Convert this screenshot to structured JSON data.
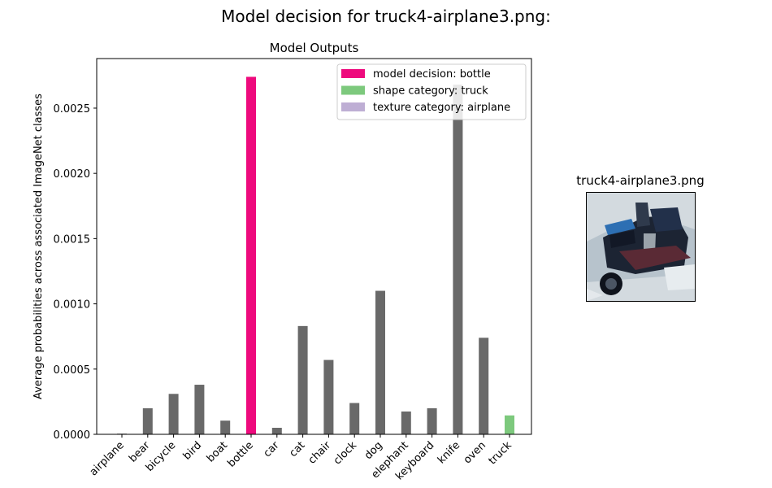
{
  "figure": {
    "title": "Model decision for truck4-airplane3.png:"
  },
  "chart_data": {
    "type": "bar",
    "title": "Model Outputs",
    "xlabel": "",
    "ylabel": "Average probabilities across associated ImageNet classes",
    "ylim": [
      0,
      0.00288
    ],
    "yticks": [
      "0.0000",
      "0.0005",
      "0.0010",
      "0.0015",
      "0.0020",
      "0.0025"
    ],
    "ytick_values": [
      0,
      0.0005,
      0.001,
      0.0015,
      0.002,
      0.0025
    ],
    "categories": [
      "airplane",
      "bear",
      "bicycle",
      "bird",
      "boat",
      "bottle",
      "car",
      "cat",
      "chair",
      "clock",
      "dog",
      "elephant",
      "keyboard",
      "knife",
      "oven",
      "truck"
    ],
    "values": [
      5e-06,
      0.0002,
      0.00031,
      0.00038,
      0.000105,
      0.00274,
      5e-05,
      0.00083,
      0.00057,
      0.00024,
      0.0011,
      0.000175,
      0.0002,
      0.00268,
      0.00074,
      0.000145
    ],
    "bar_roles": [
      "default",
      "default",
      "default",
      "default",
      "default",
      "decision",
      "default",
      "default",
      "default",
      "default",
      "default",
      "default",
      "default",
      "default",
      "default",
      "shape"
    ],
    "colors": {
      "default": "#696969",
      "decision": "#ee0a7d",
      "shape": "#7dc97d",
      "texture": "#beaed4"
    },
    "grid": false,
    "legend": {
      "placement": "top-right",
      "entries": [
        {
          "label": "model decision: bottle",
          "role": "decision"
        },
        {
          "label": "shape category: truck",
          "role": "shape"
        },
        {
          "label": "texture category: airplane",
          "role": "texture"
        }
      ]
    }
  },
  "thumbnail": {
    "title": "truck4-airplane3.png"
  }
}
